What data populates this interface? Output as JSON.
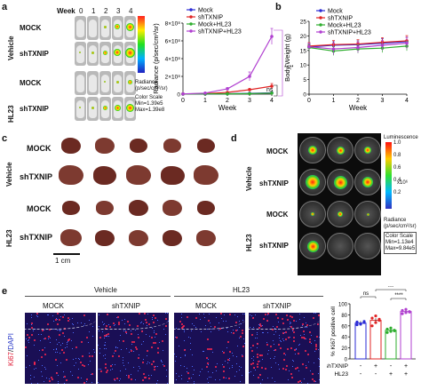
{
  "panels": {
    "a": "a",
    "b": "b",
    "c": "c",
    "d": "d",
    "e": "e"
  },
  "panel_a": {
    "week_label": "Week",
    "weeks": [
      "0",
      "1",
      "2",
      "3",
      "4"
    ],
    "group_vehicle": "Vehicle",
    "group_hl23": "HL23",
    "row_mock": "MOCK",
    "row_shtxnip": "shTXNIP",
    "scale_labels": [
      "Radiance",
      "(p/sec/cm²/sr)",
      "Color Scale",
      "Min=1.39e5",
      "Max=1.39e8"
    ],
    "significance": [
      "ns",
      "****"
    ]
  },
  "panel_c": {
    "group_vehicle": "Vehicle",
    "group_hl23": "HL23",
    "row_mock": "MOCK",
    "row_shtxnip": "shTXNIP",
    "scale_bar": "1 cm"
  },
  "panel_d": {
    "group_vehicle": "Vehicle",
    "group_hl23": "HL23",
    "row_mock": "MOCK",
    "row_shtxnip": "shTXNIP",
    "scale_title": "Luminescence",
    "scale_ticks": [
      "1.0",
      "0.8",
      "0.6",
      "0.4",
      "0.2"
    ],
    "scale_exp": "x10⁶",
    "scale_labels": [
      "Radiance",
      "(p/sec/cm²/sr)",
      "Color Scale",
      "Min=1.13e4",
      "Max=9.84e5"
    ]
  },
  "panel_e": {
    "group_vehicle": "Vehicle",
    "group_hl23": "HL23",
    "col_mock": "MOCK",
    "col_shtxnip": "shTXNIP",
    "stain_red": "Ki67",
    "stain_sep": "/",
    "stain_blue": "DAPI",
    "row_shtxnip": "shTXNIP",
    "row_hl23": "HL23",
    "signs_shtxnip": [
      "-",
      "+",
      "-",
      "+"
    ],
    "signs_hl23": [
      "-",
      "-",
      "+",
      "+"
    ],
    "significance": [
      "ns",
      "***",
      "****"
    ]
  },
  "colors": {
    "mock": "#2b2bd6",
    "shtxnip": "#e02424",
    "mock_hl23": "#2fae2f",
    "shtxnip_hl23": "#b03fd0"
  },
  "chart_data": [
    {
      "id": "radiance",
      "type": "line",
      "title": "",
      "xlabel": "Week",
      "ylabel": "Radiance (p/sec/cm²/sr)",
      "x": [
        0,
        1,
        2,
        3,
        4
      ],
      "xticks": [
        "0",
        "1",
        "2",
        "3",
        "4"
      ],
      "ylim": [
        0,
        800000000
      ],
      "yticks": [
        "0",
        "2×10⁸",
        "4×10⁸",
        "6×10⁸",
        "8×10⁸"
      ],
      "legend_position": "top-left",
      "series": [
        {
          "name": "Mock",
          "color": "#2b2bd6",
          "values": [
            2000000,
            3000000,
            5000000,
            9000000,
            15000000
          ],
          "err": [
            1000000,
            1000000,
            2000000,
            3000000,
            6000000
          ]
        },
        {
          "name": "shTXNIP",
          "color": "#e02424",
          "values": [
            3000000,
            6000000,
            20000000,
            50000000,
            90000000
          ],
          "err": [
            1000000,
            2000000,
            5000000,
            15000000,
            30000000
          ]
        },
        {
          "name": "Mock+HL23",
          "color": "#2fae2f",
          "values": [
            2000000,
            3000000,
            4000000,
            6000000,
            12000000
          ],
          "err": [
            1000000,
            1000000,
            1000000,
            2000000,
            4000000
          ]
        },
        {
          "name": "shTXNIP+HL23",
          "color": "#b03fd0",
          "values": [
            3000000,
            12000000,
            60000000,
            200000000,
            650000000
          ],
          "err": [
            1000000,
            4000000,
            15000000,
            50000000,
            90000000
          ]
        }
      ]
    },
    {
      "id": "bodyweight",
      "type": "line",
      "title": "",
      "xlabel": "Week",
      "ylabel": "Body Weight (g)",
      "x": [
        0,
        1,
        2,
        3,
        4
      ],
      "xticks": [
        "0",
        "1",
        "2",
        "3",
        "4"
      ],
      "ylim": [
        0,
        25
      ],
      "yticks": [
        "0",
        "5",
        "10",
        "15",
        "20",
        "25"
      ],
      "legend_position": "top",
      "series": [
        {
          "name": "Mock",
          "color": "#2b2bd6",
          "values": [
            16.2,
            16.8,
            17.0,
            17.5,
            18.0
          ],
          "err": [
            1.0,
            1.2,
            1.3,
            1.5,
            1.5
          ]
        },
        {
          "name": "shTXNIP",
          "color": "#e02424",
          "values": [
            16.5,
            17.0,
            17.2,
            17.8,
            18.3
          ],
          "err": [
            1.2,
            1.4,
            1.5,
            1.6,
            1.8
          ]
        },
        {
          "name": "Mock+HL23",
          "color": "#2fae2f",
          "values": [
            16.0,
            14.8,
            15.5,
            15.8,
            16.5
          ],
          "err": [
            1.0,
            1.5,
            1.4,
            1.5,
            1.6
          ]
        },
        {
          "name": "shTXNIP+HL23",
          "color": "#b03fd0",
          "values": [
            16.3,
            15.5,
            16.0,
            16.8,
            17.5
          ],
          "err": [
            1.1,
            2.0,
            1.8,
            1.7,
            2.0
          ]
        }
      ]
    },
    {
      "id": "ki67",
      "type": "bar",
      "title": "",
      "xlabel": "",
      "ylabel": "% Ki67 positive cell",
      "ylim": [
        0,
        100
      ],
      "yticks": [
        "0",
        "20",
        "40",
        "60",
        "80",
        "100"
      ],
      "series": [
        {
          "name": "",
          "color": "#2b2bd6",
          "value": 65,
          "points": [
            62,
            64,
            66,
            67,
            63,
            68
          ]
        },
        {
          "name": "",
          "color": "#e02424",
          "value": 70,
          "points": [
            60,
            66,
            72,
            74,
            78,
            70
          ]
        },
        {
          "name": "",
          "color": "#2fae2f",
          "value": 52,
          "points": [
            48,
            50,
            52,
            54,
            56,
            51
          ]
        },
        {
          "name": "",
          "color": "#b03fd0",
          "value": 86,
          "points": [
            82,
            84,
            86,
            88,
            90,
            85
          ]
        }
      ]
    }
  ]
}
